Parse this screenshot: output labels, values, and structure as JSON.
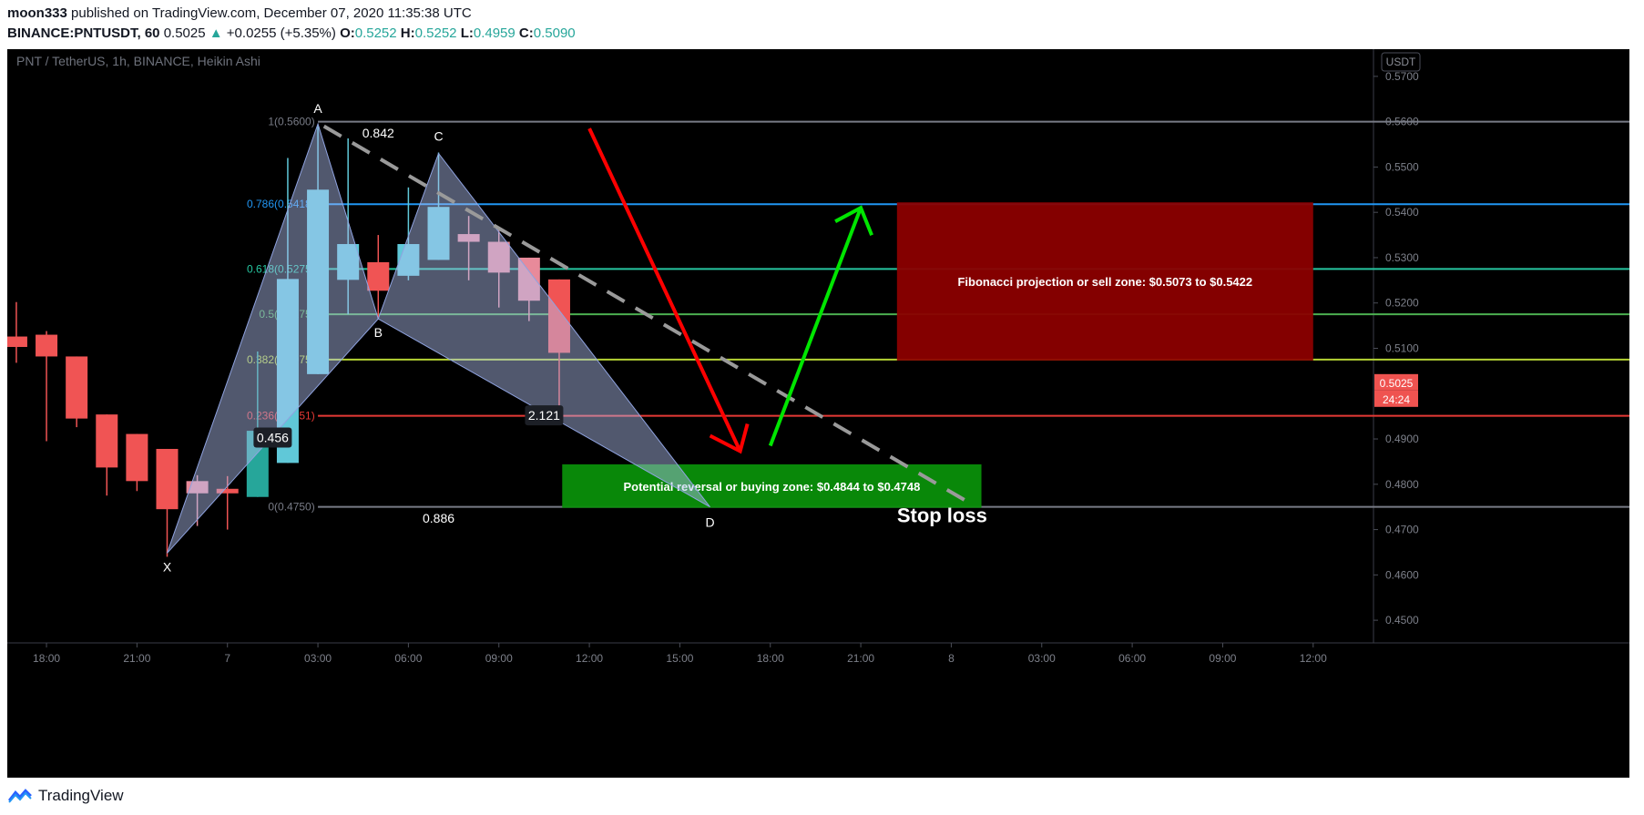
{
  "header": {
    "author": "moon333",
    "published_text": "published on TradingView.com, December 07, 2020 11:35:38 UTC",
    "symbol": "BINANCE:PNTUSDT, 60",
    "last": "0.5025",
    "change": "+0.0255 (+5.35%)",
    "o_label": "O:",
    "o": "0.5252",
    "h_label": "H:",
    "h": "0.5252",
    "l_label": "L:",
    "l": "0.4959",
    "c_label": "C:",
    "c": "0.5090"
  },
  "footer": {
    "brand": "TradingView"
  },
  "chart_data": {
    "type": "candlestick",
    "title": "PNT / TetherUS, 1h, BINANCE, Heikin Ashi",
    "currency": "USDT",
    "ylim": [
      0.445,
      0.576
    ],
    "y_ticks": [
      "0.5700",
      "0.5600",
      "0.5500",
      "0.5400",
      "0.5300",
      "0.5200",
      "0.5100",
      "0.4900",
      "0.4800",
      "0.4700",
      "0.4600",
      "0.4500"
    ],
    "x_ticks": [
      "18:00",
      "21:00",
      "7",
      "03:00",
      "06:00",
      "09:00",
      "12:00",
      "15:00",
      "18:00",
      "21:00",
      "8",
      "03:00",
      "06:00",
      "09:00",
      "12:00"
    ],
    "x_tick_hours": [
      18,
      21,
      24,
      27,
      30,
      33,
      36,
      39,
      42,
      45,
      48,
      51,
      54,
      57,
      60
    ],
    "xlim_hours": [
      16.7,
      62.0
    ],
    "last_price_label": "0.5025",
    "countdown_label": "24:24",
    "colors": {
      "bg": "#000000",
      "up": "#5bbfd0",
      "down": "#f05454",
      "up_solid": "#26a69a",
      "up_light": "#60c8d8",
      "down_light": "#e88a9a"
    },
    "candles": [
      {
        "t": 17.0,
        "o": 0.5126,
        "h": 0.5202,
        "l": 0.5068,
        "c": 0.5103,
        "color": "down"
      },
      {
        "t": 18.0,
        "o": 0.513,
        "h": 0.5138,
        "l": 0.4895,
        "c": 0.5082,
        "color": "down"
      },
      {
        "t": 19.0,
        "o": 0.5082,
        "h": 0.5082,
        "l": 0.4926,
        "c": 0.4945,
        "color": "down"
      },
      {
        "t": 20.0,
        "o": 0.4954,
        "h": 0.4954,
        "l": 0.4775,
        "c": 0.4837,
        "color": "down"
      },
      {
        "t": 21.0,
        "o": 0.4911,
        "h": 0.4911,
        "l": 0.4785,
        "c": 0.4807,
        "color": "down"
      },
      {
        "t": 22.0,
        "o": 0.4878,
        "h": 0.4878,
        "l": 0.464,
        "c": 0.4745,
        "color": "down"
      },
      {
        "t": 23.0,
        "o": 0.4807,
        "h": 0.482,
        "l": 0.4708,
        "c": 0.478,
        "color": "down_light"
      },
      {
        "t": 24.0,
        "o": 0.479,
        "h": 0.4818,
        "l": 0.47,
        "c": 0.478,
        "color": "down"
      },
      {
        "t": 25.0,
        "o": 0.4772,
        "h": 0.5093,
        "l": 0.4772,
        "c": 0.4918,
        "color": "up_solid"
      },
      {
        "t": 26.0,
        "o": 0.4847,
        "h": 0.552,
        "l": 0.4847,
        "c": 0.5253,
        "color": "up_light"
      },
      {
        "t": 27.0,
        "o": 0.5043,
        "h": 0.559,
        "l": 0.5043,
        "c": 0.545,
        "color": "up_light"
      },
      {
        "t": 28.0,
        "o": 0.5251,
        "h": 0.5563,
        "l": 0.5175,
        "c": 0.533,
        "color": "up_light"
      },
      {
        "t": 29.0,
        "o": 0.529,
        "h": 0.535,
        "l": 0.5165,
        "c": 0.5227,
        "color": "down"
      },
      {
        "t": 30.0,
        "o": 0.526,
        "h": 0.5455,
        "l": 0.525,
        "c": 0.533,
        "color": "up_light"
      },
      {
        "t": 31.0,
        "o": 0.5295,
        "h": 0.5532,
        "l": 0.5295,
        "c": 0.5412,
        "color": "up_light"
      },
      {
        "t": 32.0,
        "o": 0.5352,
        "h": 0.5392,
        "l": 0.525,
        "c": 0.5335,
        "color": "down_light"
      },
      {
        "t": 33.0,
        "o": 0.5335,
        "h": 0.5368,
        "l": 0.519,
        "c": 0.5267,
        "color": "down_light"
      },
      {
        "t": 34.0,
        "o": 0.53,
        "h": 0.53,
        "l": 0.516,
        "c": 0.5205,
        "color": "down_light"
      },
      {
        "t": 35.0,
        "o": 0.5252,
        "h": 0.5252,
        "l": 0.4959,
        "c": 0.509,
        "color": "down"
      }
    ],
    "fib_levels": [
      {
        "label": "1(0.5600)",
        "price": 0.56,
        "color": "#787b86"
      },
      {
        "label": "0.786(0.5418)",
        "price": 0.5418,
        "color": "#2196f3"
      },
      {
        "label": "0.618(0.5275)",
        "price": 0.5275,
        "color": "#26c6a0"
      },
      {
        "label": "0.5(0.5175)",
        "price": 0.5175,
        "color": "#4caf50"
      },
      {
        "label": "0.382(0.5075)",
        "price": 0.5075,
        "color": "#b5d334"
      },
      {
        "label": "0.236(0.4951)",
        "price": 0.4951,
        "color": "#e53935"
      },
      {
        "label": "0(0.4750)",
        "price": 0.475,
        "color": "#787b86"
      }
    ],
    "pattern_points": [
      {
        "label": "X",
        "t": 22.0,
        "p": 0.4648
      },
      {
        "label": "A",
        "t": 27.0,
        "p": 0.5595
      },
      {
        "label": "B",
        "t": 29.0,
        "p": 0.5165
      },
      {
        "label": "C",
        "t": 31.0,
        "p": 0.553
      },
      {
        "label": "D",
        "t": 40.0,
        "p": 0.475
      }
    ],
    "ratios": [
      {
        "label": "0.842",
        "t": 29.0,
        "p": 0.5575,
        "boxed": false
      },
      {
        "label": "0.456",
        "t": 25.5,
        "p": 0.4903,
        "boxed": true
      },
      {
        "label": "2.121",
        "t": 34.5,
        "p": 0.4952,
        "boxed": true
      },
      {
        "label": "0.886",
        "t": 31.0,
        "p": 0.4725,
        "boxed": false
      }
    ],
    "zones": [
      {
        "label": "Fibonacci projection or sell zone: $0.5073 to $0.5422",
        "t1": 46.2,
        "t2": 60.0,
        "p1": 0.5422,
        "p2": 0.5073,
        "fill": "#8b0000"
      },
      {
        "label": "Potential reversal or buying zone: $0.4844 to $0.4748",
        "t1": 35.1,
        "t2": 49.0,
        "p1": 0.4844,
        "p2": 0.4748,
        "fill": "#0a8f0a"
      }
    ],
    "annotations": {
      "stop_loss": "Stop loss"
    }
  }
}
